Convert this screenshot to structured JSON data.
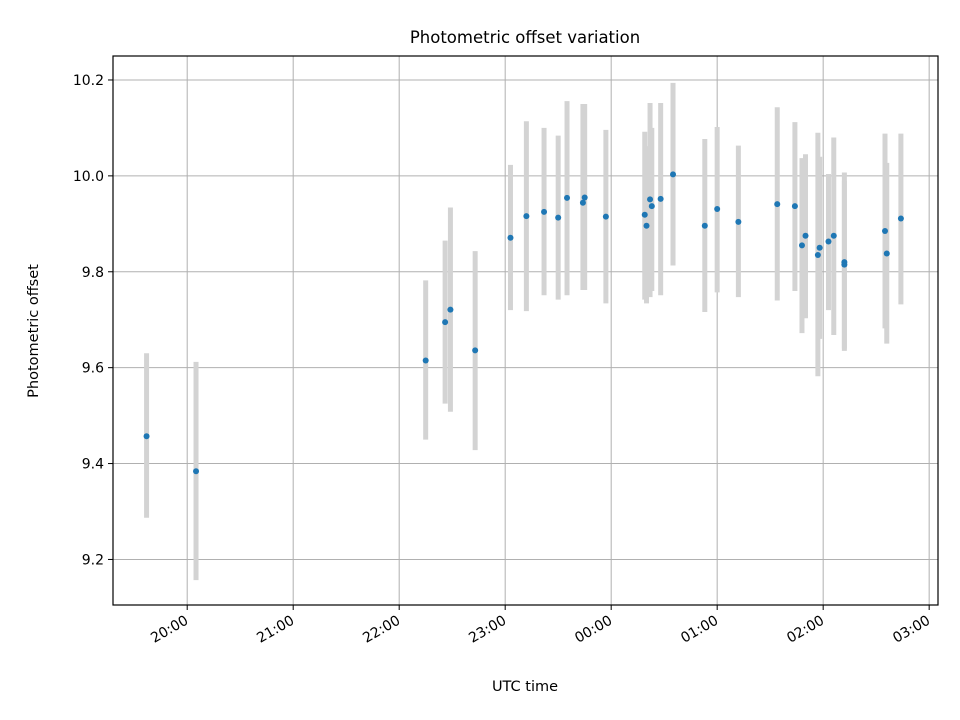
{
  "chart_data": {
    "type": "scatter",
    "title": "Photometric offset variation",
    "xlabel": "UTC time",
    "ylabel": "Photometric offset",
    "grid": true,
    "errorbars": true,
    "colors": {
      "point": "#1f77b4",
      "errorbar": "#d3d3d3",
      "grid": "#b0b0b0"
    },
    "x_ticks": [
      "20:00",
      "21:00",
      "22:00",
      "23:00",
      "00:00",
      "01:00",
      "02:00",
      "03:00"
    ],
    "y_ticks": [
      "9.2",
      "9.4",
      "9.6",
      "9.8",
      "10.0",
      "10.2"
    ],
    "xlim": [
      "19:18",
      "03:05"
    ],
    "ylim": [
      9.105,
      10.25
    ],
    "points": [
      {
        "t": "19:37",
        "y": 9.457,
        "lo": 9.287,
        "hi": 9.63
      },
      {
        "t": "20:05",
        "y": 9.384,
        "lo": 9.157,
        "hi": 9.612
      },
      {
        "t": "22:15",
        "y": 9.615,
        "lo": 9.45,
        "hi": 9.782
      },
      {
        "t": "22:26",
        "y": 9.695,
        "lo": 9.525,
        "hi": 9.865
      },
      {
        "t": "22:29",
        "y": 9.721,
        "lo": 9.508,
        "hi": 9.934
      },
      {
        "t": "22:43",
        "y": 9.636,
        "lo": 9.428,
        "hi": 9.843
      },
      {
        "t": "23:03",
        "y": 9.871,
        "lo": 9.72,
        "hi": 10.023
      },
      {
        "t": "23:12",
        "y": 9.916,
        "lo": 9.718,
        "hi": 10.114
      },
      {
        "t": "23:22",
        "y": 9.925,
        "lo": 9.751,
        "hi": 10.1
      },
      {
        "t": "23:30",
        "y": 9.913,
        "lo": 9.742,
        "hi": 10.084
      },
      {
        "t": "23:35",
        "y": 9.954,
        "lo": 9.751,
        "hi": 10.156
      },
      {
        "t": "23:44",
        "y": 9.944,
        "lo": 9.762,
        "hi": 10.15
      },
      {
        "t": "23:45",
        "y": 9.955,
        "lo": 9.762,
        "hi": 10.15
      },
      {
        "t": "23:57",
        "y": 9.915,
        "lo": 9.734,
        "hi": 10.096
      },
      {
        "t": "00:19",
        "y": 9.919,
        "lo": 9.742,
        "hi": 10.092
      },
      {
        "t": "00:20",
        "y": 9.896,
        "lo": 9.734,
        "hi": 10.062
      },
      {
        "t": "00:22",
        "y": 9.951,
        "lo": 9.747,
        "hi": 10.152
      },
      {
        "t": "00:23",
        "y": 9.937,
        "lo": 9.76,
        "hi": 10.1
      },
      {
        "t": "00:28",
        "y": 9.952,
        "lo": 9.751,
        "hi": 10.152
      },
      {
        "t": "00:35",
        "y": 10.003,
        "lo": 9.813,
        "hi": 10.194
      },
      {
        "t": "00:53",
        "y": 9.896,
        "lo": 9.716,
        "hi": 10.077
      },
      {
        "t": "01:00",
        "y": 9.931,
        "lo": 9.757,
        "hi": 10.102
      },
      {
        "t": "01:12",
        "y": 9.904,
        "lo": 9.747,
        "hi": 10.063
      },
      {
        "t": "01:34",
        "y": 9.941,
        "lo": 9.74,
        "hi": 10.143
      },
      {
        "t": "01:44",
        "y": 9.937,
        "lo": 9.76,
        "hi": 10.112
      },
      {
        "t": "01:48",
        "y": 9.855,
        "lo": 9.672,
        "hi": 10.037
      },
      {
        "t": "01:50",
        "y": 9.875,
        "lo": 9.703,
        "hi": 10.045
      },
      {
        "t": "01:57",
        "y": 9.835,
        "lo": 9.582,
        "hi": 10.09
      },
      {
        "t": "01:58",
        "y": 9.85,
        "lo": 9.66,
        "hi": 10.04
      },
      {
        "t": "02:03",
        "y": 9.863,
        "lo": 9.72,
        "hi": 10.004
      },
      {
        "t": "02:06",
        "y": 9.875,
        "lo": 9.668,
        "hi": 10.08
      },
      {
        "t": "02:12",
        "y": 9.82,
        "lo": 9.635,
        "hi": 10.007
      },
      {
        "t": "02:12",
        "y": 9.815,
        "lo": 9.64,
        "hi": 9.99
      },
      {
        "t": "02:35",
        "y": 9.885,
        "lo": 9.682,
        "hi": 10.088
      },
      {
        "t": "02:36",
        "y": 9.838,
        "lo": 9.65,
        "hi": 10.027
      },
      {
        "t": "02:44",
        "y": 9.911,
        "lo": 9.732,
        "hi": 10.088
      }
    ]
  }
}
